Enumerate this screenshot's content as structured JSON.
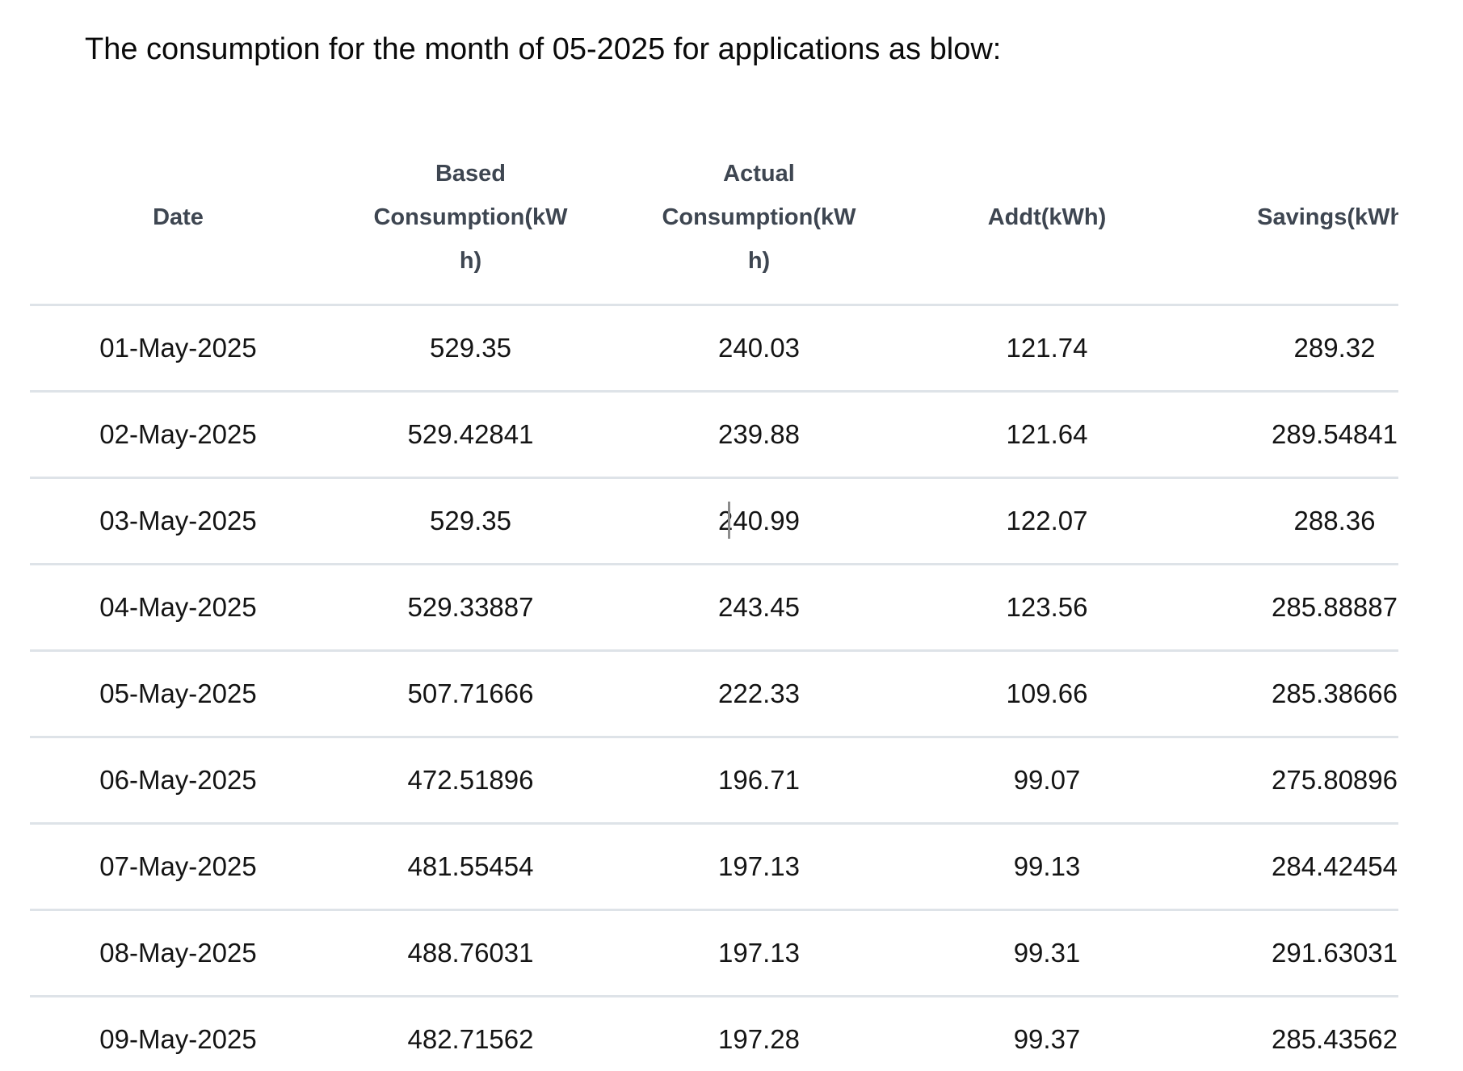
{
  "page": {
    "title": "The consumption for the month of 05-2025 for applications as blow:"
  },
  "table": {
    "columns": [
      {
        "key": "date",
        "label": "Date",
        "lines": [
          "Date"
        ]
      },
      {
        "key": "based",
        "label": "Based Consumption(kWh)",
        "lines": [
          "Based",
          "Consumption(kW",
          "h)"
        ]
      },
      {
        "key": "actual",
        "label": "Actual Consumption(kWh)",
        "lines": [
          "Actual",
          "Consumption(kW",
          "h)"
        ]
      },
      {
        "key": "addt",
        "label": "Addt(kWh)",
        "lines": [
          "Addt(kWh)"
        ]
      },
      {
        "key": "savings",
        "label": "Savings(kWh)",
        "lines": [
          "Savings(kWh)"
        ]
      }
    ],
    "rows": [
      {
        "date": "01-May-2025",
        "based": "529.35",
        "actual": "240.03",
        "addt": "121.74",
        "savings": "289.32"
      },
      {
        "date": "02-May-2025",
        "based": "529.42841",
        "actual": "239.88",
        "addt": "121.64",
        "savings": "289.54841"
      },
      {
        "date": "03-May-2025",
        "based": "529.35",
        "actual": "240.99",
        "addt": "122.07",
        "savings": "288.36"
      },
      {
        "date": "04-May-2025",
        "based": "529.33887",
        "actual": "243.45",
        "addt": "123.56",
        "savings": "285.88887"
      },
      {
        "date": "05-May-2025",
        "based": "507.71666",
        "actual": "222.33",
        "addt": "109.66",
        "savings": "285.38666"
      },
      {
        "date": "06-May-2025",
        "based": "472.51896",
        "actual": "196.71",
        "addt": "99.07",
        "savings": "275.80896"
      },
      {
        "date": "07-May-2025",
        "based": "481.55454",
        "actual": "197.13",
        "addt": "99.13",
        "savings": "284.42454"
      },
      {
        "date": "08-May-2025",
        "based": "488.76031",
        "actual": "197.13",
        "addt": "99.31",
        "savings": "291.63031"
      },
      {
        "date": "09-May-2025",
        "based": "482.71562",
        "actual": "197.28",
        "addt": "99.37",
        "savings": "285.43562"
      }
    ],
    "text_cursor": {
      "visible": true,
      "row_date": "03-May-2025",
      "column_key": "actual",
      "value": "240.99",
      "caret_after_text": "2"
    }
  },
  "colors": {
    "row_border": "#dee3e8",
    "header_text": "#3e4651",
    "body_text": "#141414",
    "title_text": "#0a0a0a",
    "caret": "#8c8c8c"
  }
}
